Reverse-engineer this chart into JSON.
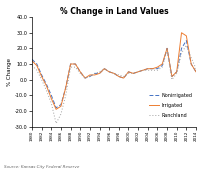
{
  "title": "% Change in Land Values",
  "ylabel": "% Change",
  "source": "Source: Kansas City Federal Reserve",
  "years": [
    1980,
    1981,
    1982,
    1983,
    1984,
    1985,
    1986,
    1987,
    1988,
    1989,
    1990,
    1991,
    1992,
    1993,
    1994,
    1995,
    1996,
    1997,
    1998,
    1999,
    2000,
    2001,
    2002,
    2003,
    2004,
    2005,
    2006,
    2007,
    2008,
    2009,
    2010,
    2011,
    2012,
    2013,
    2014
  ],
  "nonirrigated": [
    13,
    10,
    3,
    -3,
    -10,
    -18,
    -16,
    -5,
    10,
    10,
    5,
    1,
    2,
    4,
    4,
    7,
    5,
    4,
    2,
    1,
    5,
    4,
    5,
    6,
    7,
    7,
    7,
    9,
    20,
    2,
    5,
    20,
    25,
    10,
    5
  ],
  "irrigated": [
    12,
    9,
    2,
    -4,
    -12,
    -19,
    -17,
    -5,
    10,
    10,
    5,
    1,
    3,
    3,
    4,
    7,
    5,
    4,
    2,
    1,
    5,
    4,
    5,
    6,
    7,
    7,
    8,
    10,
    20,
    2,
    5,
    30,
    28,
    10,
    5
  ],
  "ranchland": [
    9,
    6,
    0,
    -7,
    -15,
    -28,
    -22,
    -10,
    8,
    8,
    4,
    1,
    2,
    4,
    5,
    7,
    5,
    4,
    3,
    2,
    4,
    4,
    5,
    6,
    6,
    6,
    6,
    8,
    19,
    0,
    4,
    17,
    22,
    14,
    7
  ],
  "nonirrigated_color": "#4472C4",
  "irrigated_color": "#ED7D31",
  "ranchland_color": "#A0A0A0",
  "ylim": [
    -30,
    40
  ],
  "yticks": [
    -30,
    -20,
    -10,
    0,
    10,
    20,
    30,
    40
  ],
  "bg_color": "#FFFFFF"
}
